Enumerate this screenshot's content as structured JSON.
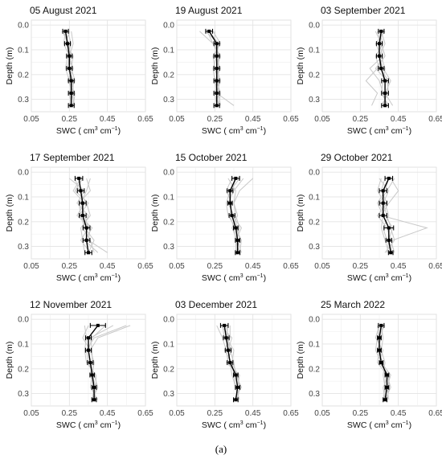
{
  "caption": "(a)",
  "axes": {
    "xlabel_prefix": "SWC ( cm",
    "xlabel_mid": " cm",
    "xlabel_suffix": ")",
    "xlabel_sup1": "3",
    "xlabel_sup2": "−1",
    "ylabel": "Depth (m)",
    "xticks": [
      "0.05",
      "0.25",
      "0.45",
      "0.65"
    ],
    "yticks": [
      "0.0",
      "0.1",
      "0.2",
      "0.3"
    ]
  },
  "chart_data": [
    {
      "type": "line",
      "title": "05 August 2021",
      "xlim": [
        0.05,
        0.65
      ],
      "ylim": [
        0.35,
        -0.02
      ],
      "grid": true,
      "depths": [
        0.025,
        0.075,
        0.125,
        0.175,
        0.225,
        0.275,
        0.325
      ],
      "mean": [
        0.23,
        0.24,
        0.25,
        0.25,
        0.26,
        0.26,
        0.26
      ],
      "err": [
        0.015,
        0.015,
        0.015,
        0.015,
        0.015,
        0.015,
        0.015
      ],
      "traces": [
        [
          0.22,
          0.24,
          0.26,
          0.25,
          0.27,
          0.27,
          0.27
        ],
        [
          0.24,
          0.26,
          0.24,
          0.27,
          0.25,
          0.26,
          0.28
        ],
        [
          0.25,
          0.23,
          0.27,
          0.26,
          0.28,
          0.25,
          0.26
        ],
        [
          0.21,
          0.25,
          0.24,
          0.23,
          0.25,
          0.27,
          0.25
        ],
        [
          0.23,
          0.22,
          0.25,
          0.27,
          0.24,
          0.28,
          0.27
        ],
        [
          0.26,
          0.27,
          0.25,
          0.24,
          0.27,
          0.25,
          0.26
        ]
      ]
    },
    {
      "type": "line",
      "title": "19 August 2021",
      "xlim": [
        0.05,
        0.65
      ],
      "ylim": [
        0.35,
        -0.02
      ],
      "grid": true,
      "depths": [
        0.025,
        0.075,
        0.125,
        0.175,
        0.225,
        0.275,
        0.325
      ],
      "mean": [
        0.22,
        0.26,
        0.26,
        0.26,
        0.26,
        0.26,
        0.26
      ],
      "err": [
        0.018,
        0.015,
        0.015,
        0.015,
        0.015,
        0.015,
        0.015
      ],
      "traces": [
        [
          0.17,
          0.24,
          0.27,
          0.26,
          0.28,
          0.26,
          0.27
        ],
        [
          0.2,
          0.27,
          0.25,
          0.28,
          0.25,
          0.27,
          0.28
        ],
        [
          0.24,
          0.28,
          0.24,
          0.25,
          0.27,
          0.25,
          0.26
        ],
        [
          0.25,
          0.25,
          0.27,
          0.27,
          0.26,
          0.28,
          0.27
        ],
        [
          0.22,
          0.27,
          0.26,
          0.24,
          0.25,
          0.26,
          0.35
        ],
        [
          0.21,
          0.24,
          0.28,
          0.26,
          0.27,
          0.27,
          0.26
        ]
      ]
    },
    {
      "type": "line",
      "title": "03 September 2021",
      "xlim": [
        0.05,
        0.65
      ],
      "ylim": [
        0.35,
        -0.02
      ],
      "grid": true,
      "depths": [
        0.025,
        0.075,
        0.125,
        0.175,
        0.225,
        0.275,
        0.325
      ],
      "mean": [
        0.36,
        0.35,
        0.35,
        0.36,
        0.38,
        0.38,
        0.38
      ],
      "err": [
        0.015,
        0.015,
        0.015,
        0.015,
        0.018,
        0.018,
        0.018
      ],
      "traces": [
        [
          0.34,
          0.36,
          0.38,
          0.33,
          0.39,
          0.4,
          0.36
        ],
        [
          0.38,
          0.33,
          0.36,
          0.38,
          0.37,
          0.36,
          0.4
        ],
        [
          0.35,
          0.37,
          0.33,
          0.35,
          0.4,
          0.39,
          0.37
        ],
        [
          0.37,
          0.35,
          0.37,
          0.3,
          0.35,
          0.37,
          0.39
        ],
        [
          0.33,
          0.36,
          0.38,
          0.34,
          0.28,
          0.34,
          0.31
        ],
        [
          0.36,
          0.38,
          0.35,
          0.37,
          0.41,
          0.38,
          0.42
        ]
      ]
    },
    {
      "type": "line",
      "title": "17 September 2021",
      "xlim": [
        0.05,
        0.65
      ],
      "ylim": [
        0.35,
        -0.02
      ],
      "grid": true,
      "depths": [
        0.025,
        0.075,
        0.125,
        0.175,
        0.225,
        0.275,
        0.325
      ],
      "mean": [
        0.3,
        0.31,
        0.32,
        0.32,
        0.34,
        0.34,
        0.35
      ],
      "err": [
        0.02,
        0.018,
        0.018,
        0.018,
        0.018,
        0.018,
        0.018
      ],
      "traces": [
        [
          0.25,
          0.33,
          0.29,
          0.35,
          0.32,
          0.36,
          0.38
        ],
        [
          0.32,
          0.28,
          0.35,
          0.3,
          0.37,
          0.33,
          0.4
        ],
        [
          0.34,
          0.36,
          0.3,
          0.31,
          0.33,
          0.38,
          0.35
        ],
        [
          0.28,
          0.3,
          0.34,
          0.36,
          0.31,
          0.32,
          0.33
        ],
        [
          0.31,
          0.27,
          0.33,
          0.29,
          0.36,
          0.35,
          0.45
        ],
        [
          0.36,
          0.34,
          0.31,
          0.33,
          0.35,
          0.31,
          0.36
        ]
      ]
    },
    {
      "type": "line",
      "title": "15 October 2021",
      "xlim": [
        0.05,
        0.65
      ],
      "ylim": [
        0.35,
        -0.02
      ],
      "grid": true,
      "depths": [
        0.025,
        0.075,
        0.125,
        0.175,
        0.225,
        0.275,
        0.325
      ],
      "mean": [
        0.36,
        0.33,
        0.33,
        0.34,
        0.36,
        0.37,
        0.37
      ],
      "err": [
        0.02,
        0.015,
        0.012,
        0.015,
        0.012,
        0.012,
        0.012
      ],
      "traces": [
        [
          0.45,
          0.38,
          0.35,
          0.36,
          0.38,
          0.36,
          0.38
        ],
        [
          0.4,
          0.35,
          0.32,
          0.35,
          0.37,
          0.38,
          0.36
        ],
        [
          0.34,
          0.31,
          0.34,
          0.33,
          0.35,
          0.36,
          0.37
        ],
        [
          0.38,
          0.33,
          0.31,
          0.32,
          0.36,
          0.39,
          0.38
        ],
        [
          0.32,
          0.36,
          0.35,
          0.37,
          0.34,
          0.37,
          0.39
        ],
        [
          0.36,
          0.34,
          0.33,
          0.34,
          0.39,
          0.36,
          0.36
        ]
      ]
    },
    {
      "type": "line",
      "title": "29 October 2021",
      "xlim": [
        0.05,
        0.65
      ],
      "ylim": [
        0.35,
        -0.02
      ],
      "grid": true,
      "depths": [
        0.025,
        0.075,
        0.125,
        0.175,
        0.225,
        0.275,
        0.325
      ],
      "mean": [
        0.4,
        0.37,
        0.37,
        0.37,
        0.4,
        0.4,
        0.41
      ],
      "err": [
        0.02,
        0.02,
        0.02,
        0.02,
        0.025,
        0.015,
        0.012
      ],
      "traces": [
        [
          0.41,
          0.45,
          0.4,
          0.36,
          0.6,
          0.42,
          0.41
        ],
        [
          0.36,
          0.34,
          0.38,
          0.4,
          0.37,
          0.39,
          0.42
        ],
        [
          0.43,
          0.39,
          0.35,
          0.38,
          0.42,
          0.4,
          0.39
        ],
        [
          0.38,
          0.36,
          0.39,
          0.34,
          0.39,
          0.41,
          0.43
        ],
        [
          0.4,
          0.38,
          0.34,
          0.37,
          0.36,
          0.38,
          0.4
        ],
        [
          0.35,
          0.4,
          0.37,
          0.39,
          0.41,
          0.43,
          0.38
        ]
      ]
    },
    {
      "type": "line",
      "title": "12 November 2021",
      "xlim": [
        0.05,
        0.65
      ],
      "ylim": [
        0.35,
        -0.02
      ],
      "grid": true,
      "depths": [
        0.025,
        0.075,
        0.125,
        0.175,
        0.225,
        0.275,
        0.325
      ],
      "mean": [
        0.4,
        0.35,
        0.35,
        0.36,
        0.37,
        0.38,
        0.38
      ],
      "err": [
        0.04,
        0.015,
        0.015,
        0.015,
        0.012,
        0.012,
        0.012
      ],
      "traces": [
        [
          0.57,
          0.4,
          0.36,
          0.38,
          0.37,
          0.39,
          0.38
        ],
        [
          0.55,
          0.38,
          0.34,
          0.35,
          0.38,
          0.37,
          0.39
        ],
        [
          0.48,
          0.36,
          0.37,
          0.37,
          0.36,
          0.38,
          0.37
        ],
        [
          0.33,
          0.34,
          0.33,
          0.34,
          0.39,
          0.39,
          0.38
        ],
        [
          0.35,
          0.32,
          0.36,
          0.38,
          0.37,
          0.36,
          0.4
        ],
        [
          0.44,
          0.37,
          0.35,
          0.36,
          0.38,
          0.4,
          0.37
        ]
      ]
    },
    {
      "type": "line",
      "title": "03 December 2021",
      "xlim": [
        0.05,
        0.65
      ],
      "ylim": [
        0.35,
        -0.02
      ],
      "grid": true,
      "depths": [
        0.025,
        0.075,
        0.125,
        0.175,
        0.225,
        0.275,
        0.325
      ],
      "mean": [
        0.3,
        0.31,
        0.32,
        0.33,
        0.36,
        0.37,
        0.36
      ],
      "err": [
        0.02,
        0.015,
        0.015,
        0.015,
        0.012,
        0.012,
        0.012
      ],
      "traces": [
        [
          0.26,
          0.29,
          0.31,
          0.32,
          0.37,
          0.38,
          0.37
        ],
        [
          0.33,
          0.33,
          0.3,
          0.34,
          0.35,
          0.36,
          0.38
        ],
        [
          0.29,
          0.3,
          0.34,
          0.31,
          0.38,
          0.37,
          0.36
        ],
        [
          0.31,
          0.32,
          0.33,
          0.35,
          0.36,
          0.39,
          0.35
        ],
        [
          0.28,
          0.34,
          0.32,
          0.33,
          0.34,
          0.36,
          0.37
        ],
        [
          0.32,
          0.31,
          0.35,
          0.34,
          0.37,
          0.38,
          0.36
        ]
      ]
    },
    {
      "type": "line",
      "title": "25 March 2022",
      "xlim": [
        0.05,
        0.65
      ],
      "ylim": [
        0.35,
        -0.02
      ],
      "grid": true,
      "depths": [
        0.025,
        0.075,
        0.125,
        0.175,
        0.225,
        0.275,
        0.325
      ],
      "mean": [
        0.36,
        0.35,
        0.35,
        0.36,
        0.39,
        0.39,
        0.38
      ],
      "err": [
        0.015,
        0.01,
        0.01,
        0.01,
        0.01,
        0.01,
        0.01
      ],
      "traces": [
        [
          0.35,
          0.34,
          0.36,
          0.35,
          0.4,
          0.4,
          0.39
        ],
        [
          0.37,
          0.36,
          0.34,
          0.37,
          0.38,
          0.38,
          0.37
        ],
        [
          0.34,
          0.35,
          0.35,
          0.34,
          0.39,
          0.41,
          0.38
        ],
        [
          0.38,
          0.34,
          0.33,
          0.36,
          0.41,
          0.39,
          0.4
        ],
        [
          0.36,
          0.37,
          0.36,
          0.38,
          0.37,
          0.38,
          0.39
        ],
        [
          0.35,
          0.33,
          0.37,
          0.35,
          0.4,
          0.37,
          0.38
        ]
      ]
    }
  ]
}
